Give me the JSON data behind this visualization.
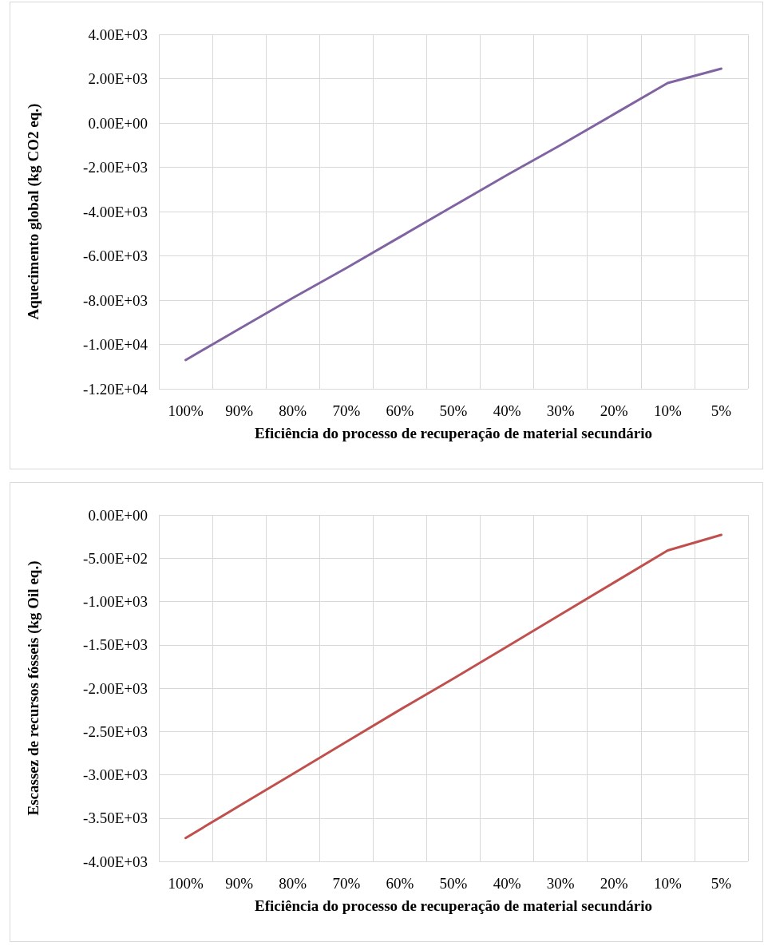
{
  "chart_data": [
    {
      "type": "line",
      "xlabel": "Eficiência do processo de recuperação de material secundário",
      "ylabel": "Aquecimento global (kg CO2 eq.)",
      "categories": [
        "100%",
        "90%",
        "80%",
        "70%",
        "60%",
        "50%",
        "40%",
        "30%",
        "20%",
        "10%",
        "5%"
      ],
      "series": [
        {
          "color": "#8064a2",
          "values": [
            -10700,
            -9300,
            -7900,
            -6550,
            -5150,
            -3750,
            -2350,
            -1000,
            400,
            1800,
            2450
          ]
        }
      ],
      "ylim": [
        -12000,
        4000
      ],
      "yticks": [
        {
          "value": -12000,
          "label": "-1.20E+04"
        },
        {
          "value": -10000,
          "label": "-1.00E+04"
        },
        {
          "value": -8000,
          "label": "-8.00E+03"
        },
        {
          "value": -6000,
          "label": "-6.00E+03"
        },
        {
          "value": -4000,
          "label": "-4.00E+03"
        },
        {
          "value": -2000,
          "label": "-2.00E+03"
        },
        {
          "value": 0,
          "label": "0.00E+00"
        },
        {
          "value": 2000,
          "label": "2.00E+03"
        },
        {
          "value": 4000,
          "label": "4.00E+03"
        }
      ],
      "grid": true,
      "marker": "none",
      "line_style": "solid"
    },
    {
      "type": "line",
      "xlabel": "Eficiência do processo de recuperação de material secundário",
      "ylabel": "Escassez de recursos fósseis (kg Oil eq.)",
      "categories": [
        "100%",
        "90%",
        "80%",
        "70%",
        "60%",
        "50%",
        "40%",
        "30%",
        "20%",
        "10%",
        "5%"
      ],
      "series": [
        {
          "color": "#c0504d",
          "values": [
            -3730,
            -3360,
            -2990,
            -2620,
            -2250,
            -1890,
            -1520,
            -1150,
            -780,
            -410,
            -230
          ]
        }
      ],
      "ylim": [
        -4000,
        0
      ],
      "yticks": [
        {
          "value": -4000,
          "label": "-4.00E+03"
        },
        {
          "value": -3500,
          "label": "-3.50E+03"
        },
        {
          "value": -3000,
          "label": "-3.00E+03"
        },
        {
          "value": -2500,
          "label": "-2.50E+03"
        },
        {
          "value": -2000,
          "label": "-2.00E+03"
        },
        {
          "value": -1500,
          "label": "-1.50E+03"
        },
        {
          "value": -1000,
          "label": "-1.00E+03"
        },
        {
          "value": -500,
          "label": "-5.00E+02"
        },
        {
          "value": 0,
          "label": "0.00E+00"
        }
      ],
      "grid": true,
      "marker": "none",
      "line_style": "solid"
    }
  ]
}
